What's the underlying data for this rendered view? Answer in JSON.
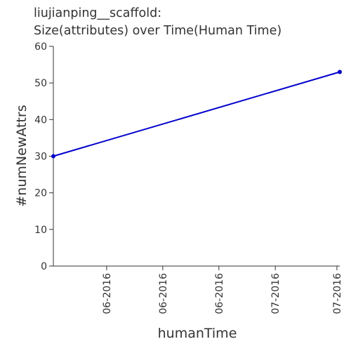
{
  "chart_data": {
    "type": "line",
    "title_line1": "liujianping__scaffold:",
    "title_line2": "Size(attributes) over Time(Human Time)",
    "xlabel": "humanTime",
    "ylabel": "#numNewAttrs",
    "ylim": [
      0,
      60
    ],
    "yticks": [
      0,
      10,
      20,
      30,
      40,
      50,
      60
    ],
    "xlim": [
      0,
      1
    ],
    "xticks": [
      {
        "value": 0.186,
        "label": "06-2016"
      },
      {
        "value": 0.382,
        "label": "06-2016"
      },
      {
        "value": 0.578,
        "label": "06-2016"
      },
      {
        "value": 0.775,
        "label": "07-2016"
      },
      {
        "value": 0.99,
        "label": "07-2016"
      }
    ],
    "series": [
      {
        "color": "#0000cc",
        "points": [
          {
            "x": 0.0,
            "y": 30
          },
          {
            "x": 1.0,
            "y": 53
          }
        ]
      }
    ],
    "grid": false
  }
}
